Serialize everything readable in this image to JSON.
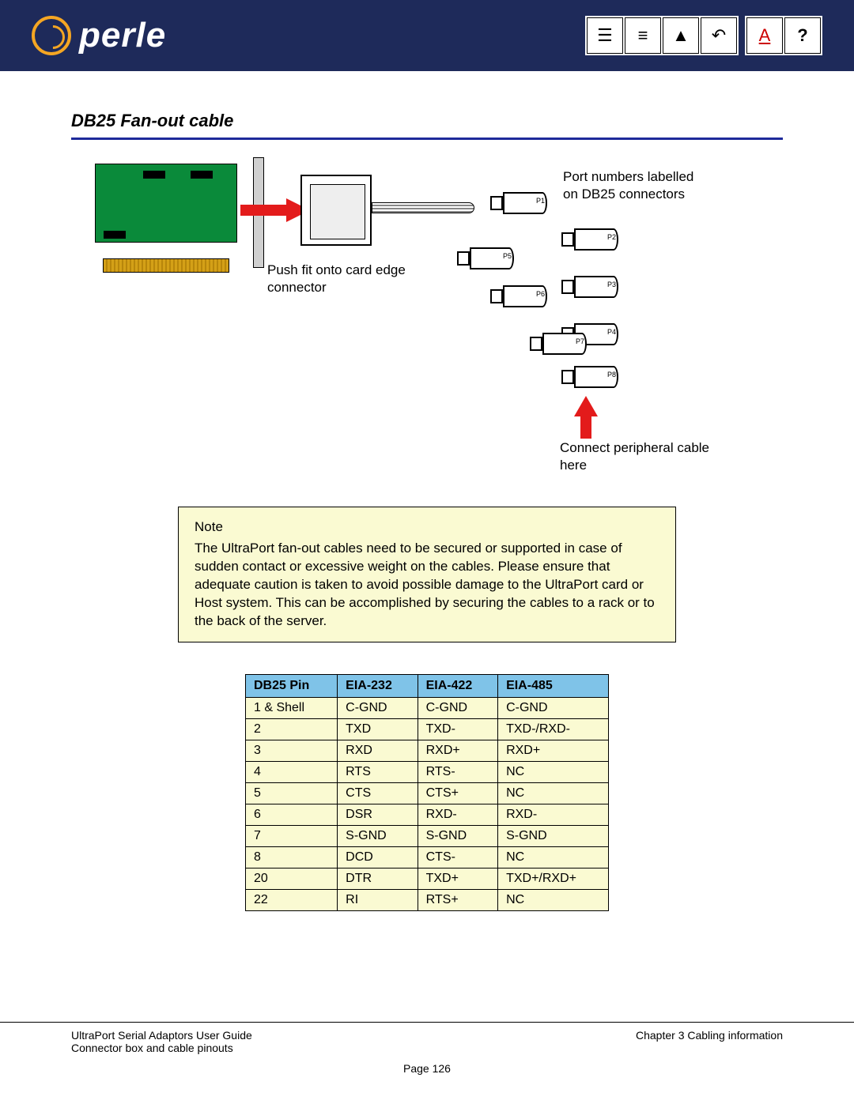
{
  "logo_text": "perle",
  "section_title": "DB25 Fan-out cable",
  "labels": {
    "push": "Push fit onto card edge connector",
    "port": "Port numbers labelled on DB25 connectors",
    "connect": "Connect peripheral cable here"
  },
  "connectors": {
    "p1": "P1",
    "p2": "P2",
    "p3": "P3",
    "p4": "P4",
    "p5": "P5",
    "p6": "P6",
    "p7": "P7",
    "p8": "P8"
  },
  "note": {
    "title": "Note",
    "body": "The UltraPort fan-out cables need to be secured or supported in case of sudden contact or excessive weight on the cables. Please ensure that adequate caution is taken to avoid possible damage to the UltraPort card or Host system. This can be accomplished by securing the cables to a rack or to the back of the server."
  },
  "table": {
    "headers": [
      "DB25 Pin",
      "EIA-232",
      "EIA-422",
      "EIA-485"
    ],
    "rows": [
      [
        "1 & Shell",
        "C-GND",
        "C-GND",
        "C-GND"
      ],
      [
        "2",
        "TXD",
        "TXD-",
        "TXD-/RXD-"
      ],
      [
        "3",
        "RXD",
        "RXD+",
        "RXD+"
      ],
      [
        "4",
        "RTS",
        "RTS-",
        "NC"
      ],
      [
        "5",
        "CTS",
        "CTS+",
        "NC"
      ],
      [
        "6",
        "DSR",
        "RXD-",
        "RXD-"
      ],
      [
        "7",
        "S-GND",
        "S-GND",
        "S-GND"
      ],
      [
        "8",
        "DCD",
        "CTS-",
        "NC"
      ],
      [
        "20",
        "DTR",
        "TXD+",
        "TXD+/RXD+"
      ],
      [
        "22",
        "RI",
        "RTS+",
        "NC"
      ]
    ]
  },
  "footer": {
    "left1": "UltraPort Serial Adaptors User Guide",
    "left2": "Connector box and cable pinouts",
    "right": "Chapter 3 Cabling information",
    "page": "Page 126"
  },
  "colors": {
    "header_bg": "#1e2a5a",
    "accent": "#f5a623",
    "rule": "#1e2a9a",
    "card": "#0a8a3a",
    "arrow": "#e31b1b",
    "note_bg": "#fafad2",
    "th_bg": "#7fc3e8"
  }
}
